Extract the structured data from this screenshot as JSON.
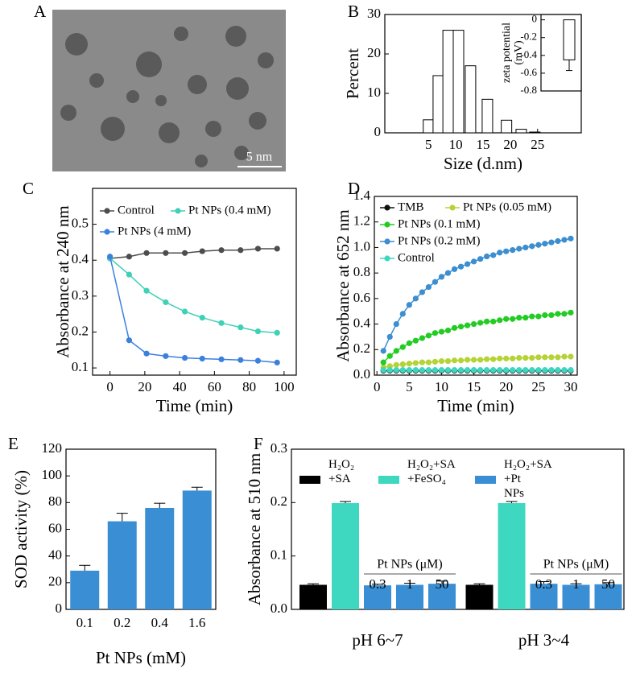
{
  "chart_data": [
    {
      "type": "image",
      "label": "A",
      "scale_bar": "5 nm"
    },
    {
      "type": "bar",
      "label": "B",
      "xlabel": "Size (d.nm)",
      "ylabel": "Percent",
      "x": [
        5,
        6.8,
        8.6,
        10.5,
        12.7,
        15.8,
        19.3,
        22,
        24.5
      ],
      "values": [
        3.3,
        14.5,
        26,
        26,
        17,
        8.5,
        3.2,
        0.9,
        0.2
      ],
      "color": "#ffffff",
      "xlim": [
        -3,
        33
      ],
      "xticks": [
        5,
        10,
        15,
        20,
        25
      ],
      "ylim": [
        0,
        30
      ],
      "yticks": [
        0,
        10,
        20,
        30
      ],
      "inset": {
        "type": "bar",
        "ylabel": [
          "zeta potential",
          "(mV)"
        ],
        "values": [
          -0.45
        ],
        "errors": [
          0.12
        ],
        "color": "#ffffff",
        "ylim": [
          -0.8,
          0.06
        ],
        "yticks": [
          0,
          -0.2,
          -0.4,
          -0.6,
          -0.8
        ]
      }
    },
    {
      "type": "line",
      "label": "C",
      "xlabel": "Time (min)",
      "ylabel": "Absorbance at 240 nm",
      "x": [
        0,
        11,
        21,
        32,
        43,
        53,
        64,
        75,
        85,
        96
      ],
      "series": [
        {
          "name": "Control",
          "color": "#4d4d4d",
          "values": [
            0.405,
            0.41,
            0.42,
            0.42,
            0.42,
            0.425,
            0.428,
            0.428,
            0.432,
            0.432
          ]
        },
        {
          "name": "Pt NPs (0.4 mM)",
          "color": "#3fd1b6",
          "values": [
            0.405,
            0.36,
            0.315,
            0.283,
            0.257,
            0.24,
            0.225,
            0.213,
            0.202,
            0.198
          ]
        },
        {
          "name": "Pt NPs (4 mM)",
          "color": "#3b80dd",
          "values": [
            0.41,
            0.177,
            0.14,
            0.133,
            0.128,
            0.126,
            0.124,
            0.122,
            0.12,
            0.115
          ]
        }
      ],
      "xlim": [
        -10,
        107
      ],
      "xticks": [
        0,
        20,
        40,
        60,
        80,
        100
      ],
      "ylim": [
        0.08,
        0.6
      ],
      "yticks": [
        0.1,
        0.2,
        0.3,
        0.4,
        0.5
      ]
    },
    {
      "type": "line",
      "label": "D",
      "xlabel": "Time (min)",
      "ylabel": "Absorbance at 652 nm",
      "x": [
        1,
        2,
        3,
        4,
        5,
        6,
        7,
        8,
        9,
        10,
        11,
        12,
        13,
        14,
        15,
        16,
        17,
        18,
        19,
        20,
        21,
        22,
        23,
        24,
        25,
        26,
        27,
        28,
        29,
        30
      ],
      "series": [
        {
          "name": "TMB",
          "color": "#111111",
          "values": [
            0.035,
            0.035,
            0.035,
            0.035,
            0.035,
            0.035,
            0.035,
            0.035,
            0.035,
            0.035,
            0.035,
            0.035,
            0.035,
            0.035,
            0.035,
            0.035,
            0.035,
            0.035,
            0.035,
            0.035,
            0.035,
            0.035,
            0.035,
            0.035,
            0.035,
            0.035,
            0.035,
            0.035,
            0.035,
            0.035
          ]
        },
        {
          "name": "Pt NPs (0.05 mM)",
          "color": "#b5d334",
          "values": [
            0.06,
            0.07,
            0.08,
            0.085,
            0.09,
            0.095,
            0.1,
            0.1,
            0.105,
            0.11,
            0.11,
            0.115,
            0.115,
            0.12,
            0.12,
            0.12,
            0.125,
            0.125,
            0.13,
            0.13,
            0.13,
            0.135,
            0.135,
            0.135,
            0.14,
            0.14,
            0.14,
            0.14,
            0.145,
            0.145
          ]
        },
        {
          "name": "Pt NPs (0.1 mM)",
          "color": "#22cc22",
          "values": [
            0.1,
            0.15,
            0.19,
            0.22,
            0.25,
            0.27,
            0.29,
            0.31,
            0.33,
            0.34,
            0.35,
            0.37,
            0.38,
            0.39,
            0.4,
            0.41,
            0.42,
            0.42,
            0.43,
            0.44,
            0.44,
            0.45,
            0.45,
            0.46,
            0.46,
            0.47,
            0.47,
            0.48,
            0.48,
            0.49
          ]
        },
        {
          "name": "Pt NPs (0.2 mM)",
          "color": "#3b8ed0",
          "values": [
            0.19,
            0.3,
            0.4,
            0.48,
            0.55,
            0.6,
            0.65,
            0.69,
            0.73,
            0.77,
            0.8,
            0.83,
            0.85,
            0.87,
            0.89,
            0.91,
            0.93,
            0.94,
            0.96,
            0.97,
            0.98,
            0.99,
            1.0,
            1.01,
            1.02,
            1.03,
            1.04,
            1.05,
            1.06,
            1.07
          ]
        },
        {
          "name": "Control",
          "color": "#3dd6c0",
          "values": [
            0.04,
            0.04,
            0.04,
            0.04,
            0.04,
            0.04,
            0.04,
            0.04,
            0.04,
            0.04,
            0.04,
            0.04,
            0.04,
            0.04,
            0.04,
            0.04,
            0.04,
            0.04,
            0.04,
            0.04,
            0.04,
            0.04,
            0.04,
            0.04,
            0.04,
            0.04,
            0.04,
            0.04,
            0.04,
            0.04
          ]
        }
      ],
      "xlim": [
        -0.4,
        31
      ],
      "xticks": [
        0,
        5,
        10,
        15,
        20,
        25,
        30
      ],
      "ylim": [
        0,
        1.4
      ],
      "yticks": [
        {
          "value": 0,
          "label": "0.0"
        },
        0.2,
        0.4,
        0.6,
        0.8,
        {
          "value": 1,
          "label": "1.0"
        },
        1.2,
        1.4
      ]
    },
    {
      "type": "bar",
      "label": "E",
      "xlabel": "Pt NPs (mM)",
      "ylabel": "SOD activity (%)",
      "categories": [
        "0.1",
        "0.2",
        "0.4",
        "1.6"
      ],
      "values": [
        29,
        66,
        76,
        89
      ],
      "errors": [
        4,
        6,
        3.5,
        2.5
      ],
      "color": "#3a8fd4",
      "ylim": [
        0,
        120
      ],
      "yticks": [
        0,
        20,
        40,
        60,
        80,
        100,
        120
      ]
    },
    {
      "type": "grouped_bar",
      "label": "F",
      "ylabel": "Absorbance at 510 nm",
      "categories": [
        "pH 6~7",
        "pH 3~4"
      ],
      "subgroup_label": "Pt NPs (μM)",
      "subgroup_categories": [
        "0.3",
        "1",
        "50"
      ],
      "series": [
        {
          "name": "H₂O₂ +SA",
          "color": "#000000",
          "values": [
            0.046,
            0.046
          ],
          "errors": [
            0.002,
            0.002
          ]
        },
        {
          "name": "H₂O₂+SA +FeSO₄",
          "color": "#3ed8c0",
          "values": [
            0.199,
            0.199
          ],
          "errors": [
            0.003,
            0.003
          ]
        },
        {
          "name": "H₂O₂+SA +Pt NPs",
          "color": "#3a8fd4",
          "values": [
            [
              0.045,
              0.046,
              0.048
            ],
            [
              0.048,
              0.046,
              0.047
            ]
          ],
          "errors": [
            [
              0.002,
              0.003,
              0.005
            ],
            [
              0.004,
              0.002,
              0.003
            ]
          ]
        }
      ],
      "ylim": [
        0,
        0.3
      ],
      "yticks": [
        {
          "value": 0,
          "label": "0.0"
        },
        0.1,
        0.2,
        0.3
      ]
    }
  ]
}
